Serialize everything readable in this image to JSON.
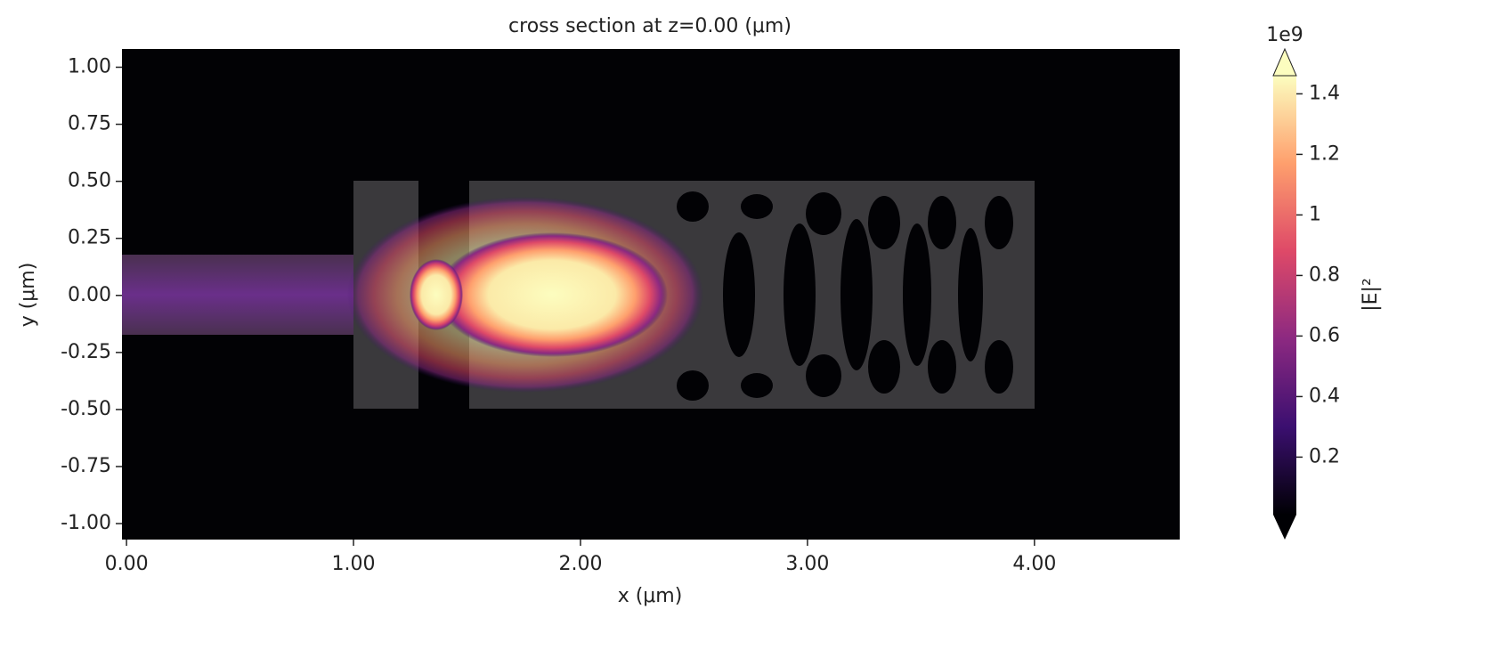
{
  "chart_data": {
    "type": "heatmap",
    "title": "cross section at z=0.00 (μm)",
    "x_label": "x (μm)",
    "y_label": "y (μm)",
    "xlim": [
      -0.02,
      4.64
    ],
    "ylim": [
      -1.07,
      1.08
    ],
    "xticks": [
      {
        "value": 0,
        "label": "0.00"
      },
      {
        "value": 1,
        "label": "1.00"
      },
      {
        "value": 2,
        "label": "2.00"
      },
      {
        "value": 3,
        "label": "3.00"
      },
      {
        "value": 4,
        "label": "4.00"
      }
    ],
    "yticks": [
      {
        "value": 1,
        "label": "1.00"
      },
      {
        "value": 0.75,
        "label": "0.75"
      },
      {
        "value": 0.5,
        "label": "0.50"
      },
      {
        "value": 0.25,
        "label": "0.25"
      },
      {
        "value": 0,
        "label": "0.00"
      },
      {
        "value": -0.25,
        "label": "-0.25"
      },
      {
        "value": -0.5,
        "label": "-0.50"
      },
      {
        "value": -0.75,
        "label": "-0.75"
      },
      {
        "value": -1,
        "label": "-1.00"
      }
    ],
    "colorbar": {
      "label": "|E|²",
      "offset_label": "1e9",
      "clim": [
        0.01,
        1.46
      ],
      "ticks": [
        0.2,
        0.4,
        0.6,
        0.8,
        1.0,
        1.2,
        1.4
      ],
      "colormap": "magma",
      "colors": [
        "#000004",
        "#3b0f70",
        "#8c2981",
        "#de4968",
        "#fe9f6d",
        "#fcfdbf"
      ]
    }
  }
}
